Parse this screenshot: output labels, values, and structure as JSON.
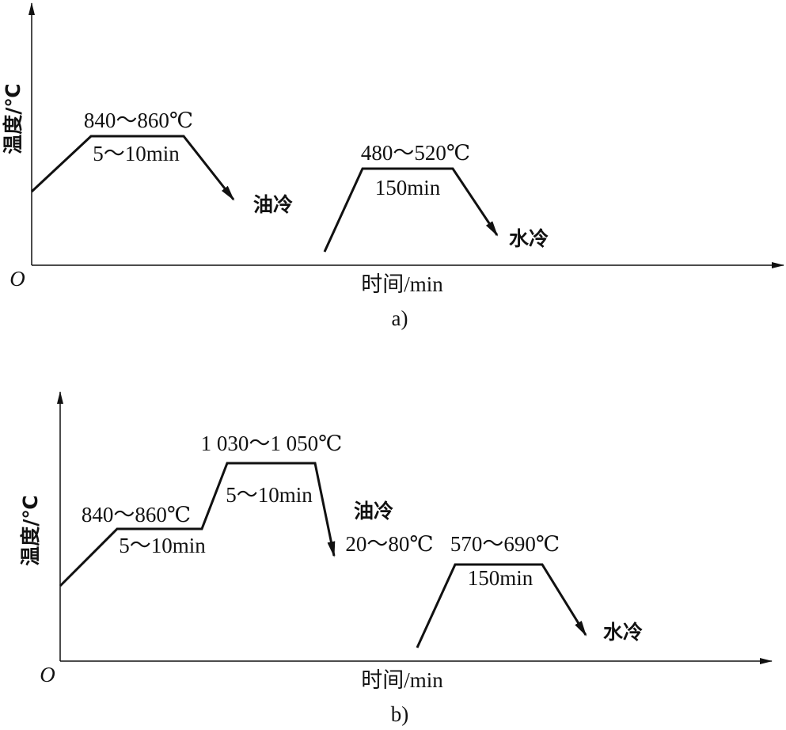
{
  "diagram_a": {
    "y_axis_label": "温度/℃",
    "origin": "O",
    "x_axis_label": "时间/min",
    "caption": "a)",
    "quench": {
      "temperature": "840～860℃",
      "hold": "5～10min",
      "cooling": "油冷"
    },
    "temper": {
      "temperature": "480～520℃",
      "hold": "150min",
      "cooling": "水冷"
    }
  },
  "diagram_b": {
    "y_axis_label": "温度/℃",
    "origin": "O",
    "x_axis_label": "时间/min",
    "caption": "b)",
    "preheat": {
      "temperature": "840～860℃",
      "hold": "5～10min"
    },
    "quench": {
      "temperature": "1 030～1 050℃",
      "hold": "5～10min",
      "cooling": "油冷",
      "end_temperature": "20～80℃"
    },
    "temper": {
      "temperature": "570～690℃",
      "hold": "150min",
      "cooling": "水冷"
    }
  }
}
